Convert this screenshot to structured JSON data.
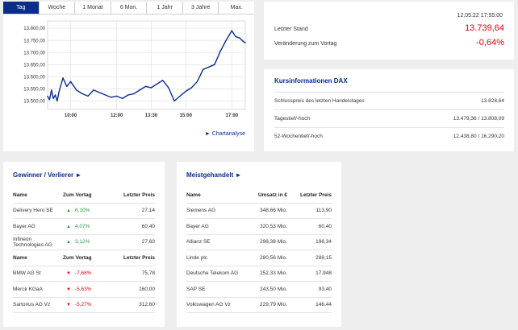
{
  "chart": {
    "tabs": [
      "Tag",
      "Woche",
      "1 Monat",
      "6 Mon.",
      "1 Jahr",
      "3 Jahre",
      "Max."
    ],
    "active_tab": "Tag",
    "link_label": "Chartanalyse",
    "link_arrow": "►",
    "color": "#0a2d8c"
  },
  "chart_data": {
    "type": "line",
    "y_ticks": [
      "13.800,00",
      "13.750,00",
      "13.700,00",
      "13.650,00",
      "13.600,00",
      "13.550,00",
      "13.500,00"
    ],
    "x_ticks": [
      "10:00",
      "12:00",
      "13:30",
      "15:00",
      "17:00"
    ],
    "ylim": [
      13465,
      13830
    ],
    "x": [
      "09:00",
      "09:05",
      "09:10",
      "09:15",
      "09:20",
      "09:25",
      "09:30",
      "09:40",
      "09:50",
      "10:00",
      "10:15",
      "10:30",
      "10:45",
      "11:00",
      "11:15",
      "11:30",
      "11:45",
      "12:00",
      "12:15",
      "12:30",
      "12:45",
      "13:00",
      "13:15",
      "13:30",
      "13:45",
      "14:00",
      "14:15",
      "14:30",
      "14:45",
      "15:00",
      "15:15",
      "15:30",
      "15:45",
      "16:00",
      "16:15",
      "16:30",
      "16:45",
      "17:00",
      "17:10",
      "17:20",
      "17:30",
      "17:35"
    ],
    "values": [
      13520,
      13505,
      13545,
      13510,
      13525,
      13500,
      13540,
      13595,
      13560,
      13580,
      13545,
      13530,
      13520,
      13545,
      13535,
      13525,
      13515,
      13520,
      13510,
      13525,
      13530,
      13545,
      13560,
      13555,
      13570,
      13585,
      13555,
      13500,
      13520,
      13540,
      13555,
      13580,
      13630,
      13640,
      13650,
      13705,
      13750,
      13790,
      13765,
      13760,
      13745,
      13740
    ]
  },
  "price": {
    "timestamp": "12.05.22 17:55:00",
    "last_label": "Letzter Stand",
    "last_value": "13.739,64",
    "change_label": "Veränderung zum Vortag",
    "change_value": "-0,64%",
    "negative_color": "#e3000f"
  },
  "info": {
    "title": "Kursinformationen DAX",
    "rows": [
      {
        "label": "Schlusspreis des letzten Handelstages",
        "value": "13.828,64"
      },
      {
        "label": "Tagestief/-hoch",
        "value": "13.479,36 / 13.808,09"
      },
      {
        "label": "52-Wochentief/-hoch",
        "value": "12.438,80 / 16.290,20"
      }
    ]
  },
  "gainers_losers": {
    "title": "Gewinner / Verlierer ►",
    "headers": [
      "Name",
      "Zum Vortag",
      "Letzter Preis"
    ],
    "gainers": [
      {
        "name": "Delivery Hero SE",
        "change": "6,10%",
        "price": "27,14"
      },
      {
        "name": "Bayer AG",
        "change": "4,07%",
        "price": "60,40"
      },
      {
        "name": "Infineon Technologies AG",
        "change": "3,12%",
        "price": "27,60"
      }
    ],
    "losers": [
      {
        "name": "BMW AG St",
        "change": "-7,68%",
        "price": "75,78"
      },
      {
        "name": "Merck KGaA",
        "change": "-5,63%",
        "price": "160,00"
      },
      {
        "name": "Sartorius AG Vz",
        "change": "-5,27%",
        "price": "312,60"
      }
    ],
    "up_arrow": "▲",
    "down_arrow": "▼",
    "positive_color": "#1e9e3a"
  },
  "most_traded": {
    "title": "Meistgehandelt ►",
    "headers": [
      "Name",
      "Umsatz in €",
      "Letzter Preis"
    ],
    "rows": [
      {
        "name": "Siemens AG",
        "volume": "348,66 Mio.",
        "price": "113,90"
      },
      {
        "name": "Bayer AG",
        "volume": "320,53 Mio.",
        "price": "60,40"
      },
      {
        "name": "Allianz SE",
        "volume": "298,38 Mio.",
        "price": "198,34"
      },
      {
        "name": "Linde plc",
        "volume": "280,56 Mio.",
        "price": "288,15"
      },
      {
        "name": "Deutsche Telekom AG",
        "volume": "252,33 Mio.",
        "price": "17,948"
      },
      {
        "name": "SAP SE",
        "volume": "243,50 Mio.",
        "price": "93,40"
      },
      {
        "name": "Volkswagen AG Vz",
        "volume": "229,79 Mio.",
        "price": "146,44"
      }
    ]
  }
}
